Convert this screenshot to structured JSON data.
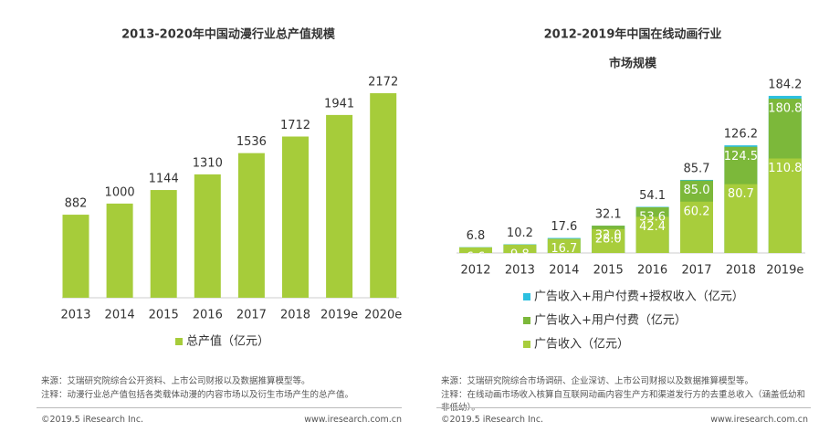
{
  "chart_data": [
    {
      "type": "bar",
      "title": "2013-2020年中国动漫行业总产值规模",
      "categories": [
        "2013",
        "2014",
        "2015",
        "2016",
        "2017",
        "2018",
        "2019e",
        "2020e"
      ],
      "series": [
        {
          "name": "总产值（亿元）",
          "color": "#a6cc3a",
          "values": [
            882,
            1000,
            1144,
            1310,
            1536,
            1712,
            1941,
            2172
          ]
        }
      ]
    },
    {
      "type": "bar",
      "title": [
        "2012-2019年中国在线动画行业",
        "市场规模"
      ],
      "categories": [
        "2012",
        "2013",
        "2014",
        "2015",
        "2016",
        "2017",
        "2018",
        "2019e"
      ],
      "series": [
        {
          "name": "广告收入+用户付费+授权收入（亿元）",
          "color": "#2cc0e0",
          "values": [
            6.8,
            10.2,
            17.6,
            32.1,
            54.1,
            85.7,
            126.2,
            184.2
          ]
        },
        {
          "name": "广告收入+用户付费（亿元）",
          "color": "#7cb83a",
          "values": [
            null,
            null,
            null,
            32.0,
            53.6,
            85.0,
            124.5,
            180.8
          ],
          "value_labels": [
            null,
            null,
            null,
            "32.0",
            "53.6",
            "85.0",
            "124.5",
            "180.8"
          ]
        },
        {
          "name": "广告收入（亿元）",
          "color": "#a8cd3c",
          "values": [
            6.6,
            9.8,
            16.7,
            28.0,
            42.4,
            60.2,
            80.7,
            110.8
          ],
          "value_labels": [
            "6.6",
            "9.8",
            "16.7",
            "28.0",
            "42.4",
            "60.2",
            "80.7",
            "110.8"
          ]
        }
      ]
    }
  ],
  "footer": {
    "left": {
      "source": "来源：艾瑞研究院综合公开资料、上市公司财报以及数据推算模型等。",
      "note": "注释：动漫行业总产值包括各类载体动漫的内容市场以及衍生市场产生的总产值。",
      "copyright": "©2019.5 iResearch Inc.",
      "url": "www.iresearch.com.cn"
    },
    "right": {
      "source": "来源：艾瑞研究院综合市场调研、企业深访、上市公司财报以及数据推算模型等。",
      "note": "注释：在线动画市场收入核算自互联网动画内容生产方和渠道发行方的去重总收入（涵盖低幼和非低幼）。",
      "copyright": "©2019.5 iResearch Inc.",
      "url": "www.iresearch.com.cn"
    }
  }
}
